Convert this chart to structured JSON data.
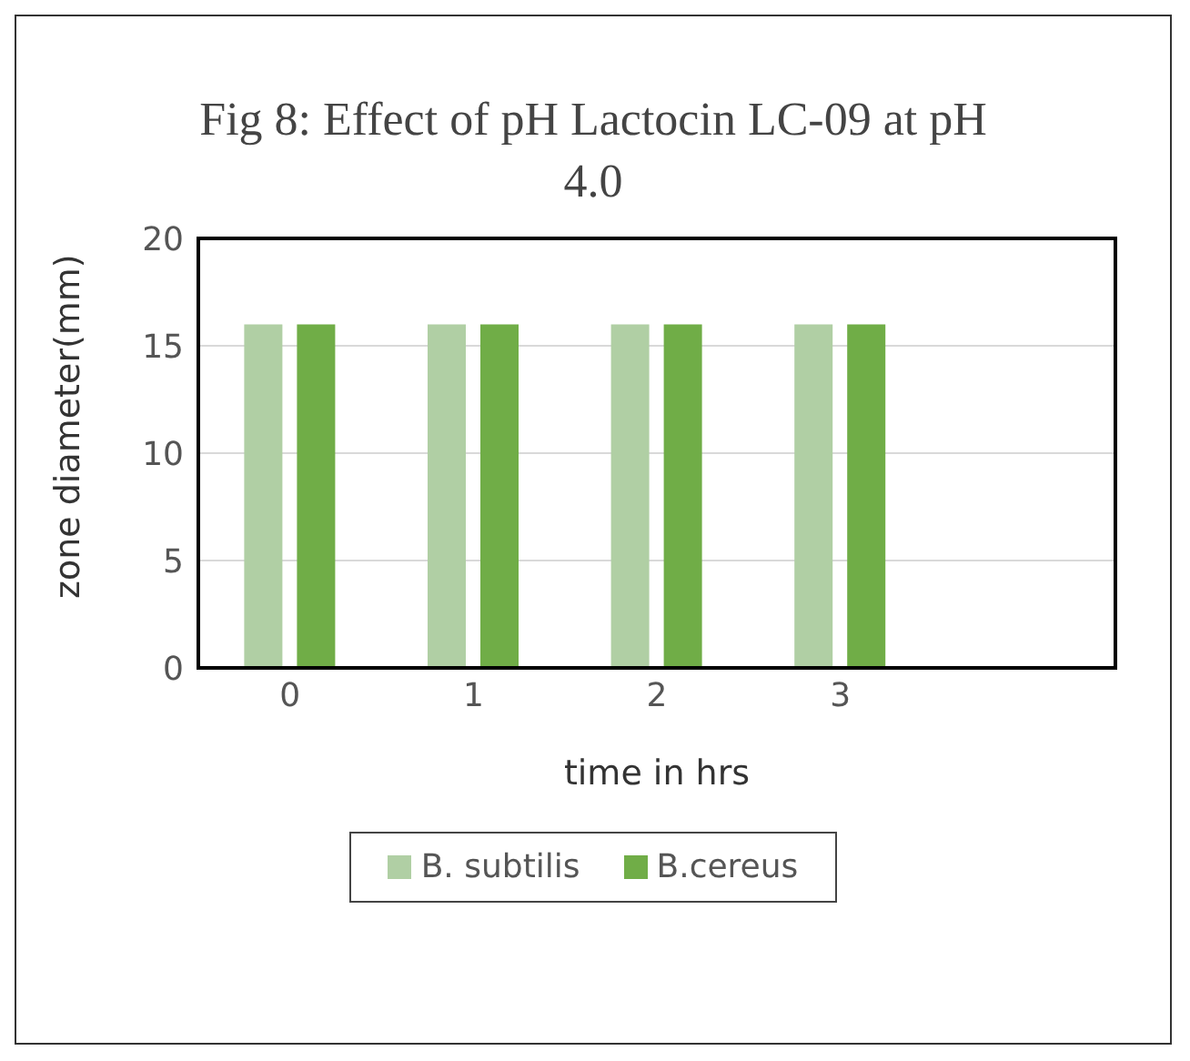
{
  "chart_data": {
    "type": "bar",
    "title": "Fig 8: Effect of pH Lactocin LC-09 at pH 4.0",
    "xlabel": "time in hrs",
    "ylabel": "zone diameter(mm)",
    "categories": [
      "0",
      "1",
      "2",
      "3",
      null
    ],
    "series": [
      {
        "name": "B. subtilis",
        "color": "#b0cfa4",
        "values": [
          16,
          16,
          16,
          16,
          null
        ]
      },
      {
        "name": "B.cereus",
        "color": "#70ad47",
        "values": [
          16,
          16,
          16,
          16,
          null
        ]
      }
    ],
    "ylim": [
      0,
      20
    ],
    "yticks": [
      0,
      5,
      10,
      15,
      20
    ],
    "grid": "y",
    "legend": "bottom"
  }
}
